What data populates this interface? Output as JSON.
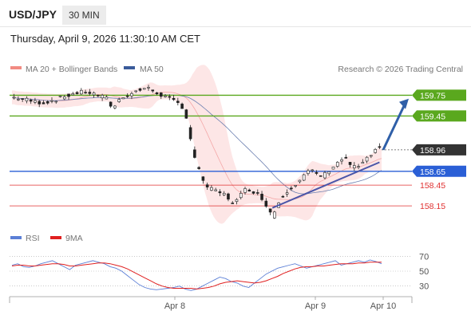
{
  "header": {
    "symbol": "USD/JPY",
    "timeframe": "30 MIN",
    "datetime": "Thursday, April 9, 2026 11:30:10 AM CET"
  },
  "legend": {
    "ma20_label": "MA 20 + Bollinger Bands",
    "ma50_label": "MA 50",
    "ma20_color": "#f28b82",
    "ma50_color": "#3a5b9a",
    "credit": "Research © 2026 Trading Central",
    "rsi_label": "RSI",
    "ma9_label": "9MA",
    "rsi_color": "#5b7fd6",
    "ma9_color": "#e02020"
  },
  "chart_data": [
    {
      "type": "candlestick",
      "title": "USD/JPY",
      "x_ticks": [
        "Apr 8",
        "Apr 9",
        "Apr 10"
      ],
      "price_range": [
        157.84,
        160.02
      ],
      "current_price": "158.96",
      "levels": [
        {
          "label": "159.75",
          "value": 159.75,
          "type": "resistance",
          "color": "#5aa81e"
        },
        {
          "label": "159.45",
          "value": 159.45,
          "type": "resistance",
          "color": "#5aa81e"
        },
        {
          "label": "158.65",
          "value": 158.65,
          "type": "pivot",
          "color": "#2a5fd6"
        },
        {
          "label": "158.45",
          "value": 158.45,
          "type": "support",
          "color": "#e03030"
        },
        {
          "label": "158.15",
          "value": 158.15,
          "type": "support",
          "color": "#e03030"
        }
      ],
      "close_path": [
        [
          0,
          159.72
        ],
        [
          5,
          159.7
        ],
        [
          10,
          159.66
        ],
        [
          15,
          159.64
        ],
        [
          20,
          159.68
        ],
        [
          25,
          159.73
        ],
        [
          30,
          159.78
        ],
        [
          35,
          159.8
        ],
        [
          40,
          159.76
        ],
        [
          45,
          159.7
        ],
        [
          48,
          159.56
        ],
        [
          52,
          159.72
        ],
        [
          57,
          159.78
        ],
        [
          61,
          159.83
        ],
        [
          64,
          159.86
        ],
        [
          68,
          159.8
        ],
        [
          72,
          159.74
        ],
        [
          76,
          159.68
        ],
        [
          80,
          159.62
        ],
        [
          82,
          159.55
        ],
        [
          84,
          159.3
        ],
        [
          86,
          158.95
        ],
        [
          88,
          158.72
        ],
        [
          90,
          158.6
        ],
        [
          92,
          158.45
        ],
        [
          94,
          158.4
        ],
        [
          96,
          158.37
        ],
        [
          98,
          158.35
        ],
        [
          100,
          158.33
        ],
        [
          102,
          158.3
        ],
        [
          104,
          158.22
        ],
        [
          106,
          158.2
        ],
        [
          108,
          158.26
        ],
        [
          110,
          158.36
        ],
        [
          112,
          158.4
        ],
        [
          114,
          158.38
        ],
        [
          116,
          158.34
        ],
        [
          118,
          158.3
        ],
        [
          120,
          158.22
        ],
        [
          122,
          158.12
        ],
        [
          124,
          158.0
        ],
        [
          126,
          158.14
        ],
        [
          128,
          158.27
        ],
        [
          130,
          158.34
        ],
        [
          132,
          158.4
        ],
        [
          134,
          158.44
        ],
        [
          136,
          158.5
        ],
        [
          138,
          158.55
        ],
        [
          140,
          158.62
        ],
        [
          142,
          158.67
        ],
        [
          144,
          158.62
        ],
        [
          146,
          158.6
        ],
        [
          148,
          158.58
        ],
        [
          150,
          158.64
        ],
        [
          152,
          158.7
        ],
        [
          154,
          158.75
        ],
        [
          156,
          158.8
        ],
        [
          158,
          158.85
        ],
        [
          160,
          158.78
        ],
        [
          162,
          158.72
        ],
        [
          164,
          158.7
        ],
        [
          166,
          158.74
        ],
        [
          168,
          158.8
        ],
        [
          170,
          158.85
        ],
        [
          172,
          158.92
        ],
        [
          174,
          158.99
        ],
        [
          176,
          158.96
        ]
      ],
      "rsi": {
        "y_ticks": [
          "70",
          "50",
          "30"
        ],
        "range": [
          20,
          80
        ],
        "rsi_values": [
          58,
          60,
          56,
          55,
          57,
          60,
          62,
          64,
          60,
          56,
          52,
          58,
          60,
          62,
          64,
          62,
          60,
          56,
          54,
          50,
          44,
          38,
          32,
          28,
          26,
          25,
          26,
          27,
          28,
          30,
          26,
          24,
          26,
          30,
          34,
          38,
          42,
          40,
          36,
          34,
          30,
          28,
          34,
          40,
          46,
          50,
          54,
          56,
          58,
          60,
          57,
          54,
          56,
          58,
          60,
          62,
          64,
          58,
          60,
          62,
          64,
          62,
          65,
          63,
          60
        ],
        "ma9_values": [
          57,
          58,
          58,
          57,
          57,
          58,
          59,
          60,
          60,
          59,
          57,
          57,
          58,
          59,
          60,
          61,
          61,
          60,
          58,
          56,
          53,
          49,
          45,
          41,
          37,
          33,
          30,
          28,
          27,
          27,
          27,
          27,
          26,
          27,
          28,
          30,
          33,
          35,
          36,
          37,
          36,
          35,
          34,
          35,
          37,
          40,
          43,
          47,
          50,
          53,
          55,
          56,
          56,
          57,
          57,
          58,
          59,
          60,
          60,
          60,
          61,
          61,
          62,
          62,
          62
        ]
      }
    }
  ]
}
